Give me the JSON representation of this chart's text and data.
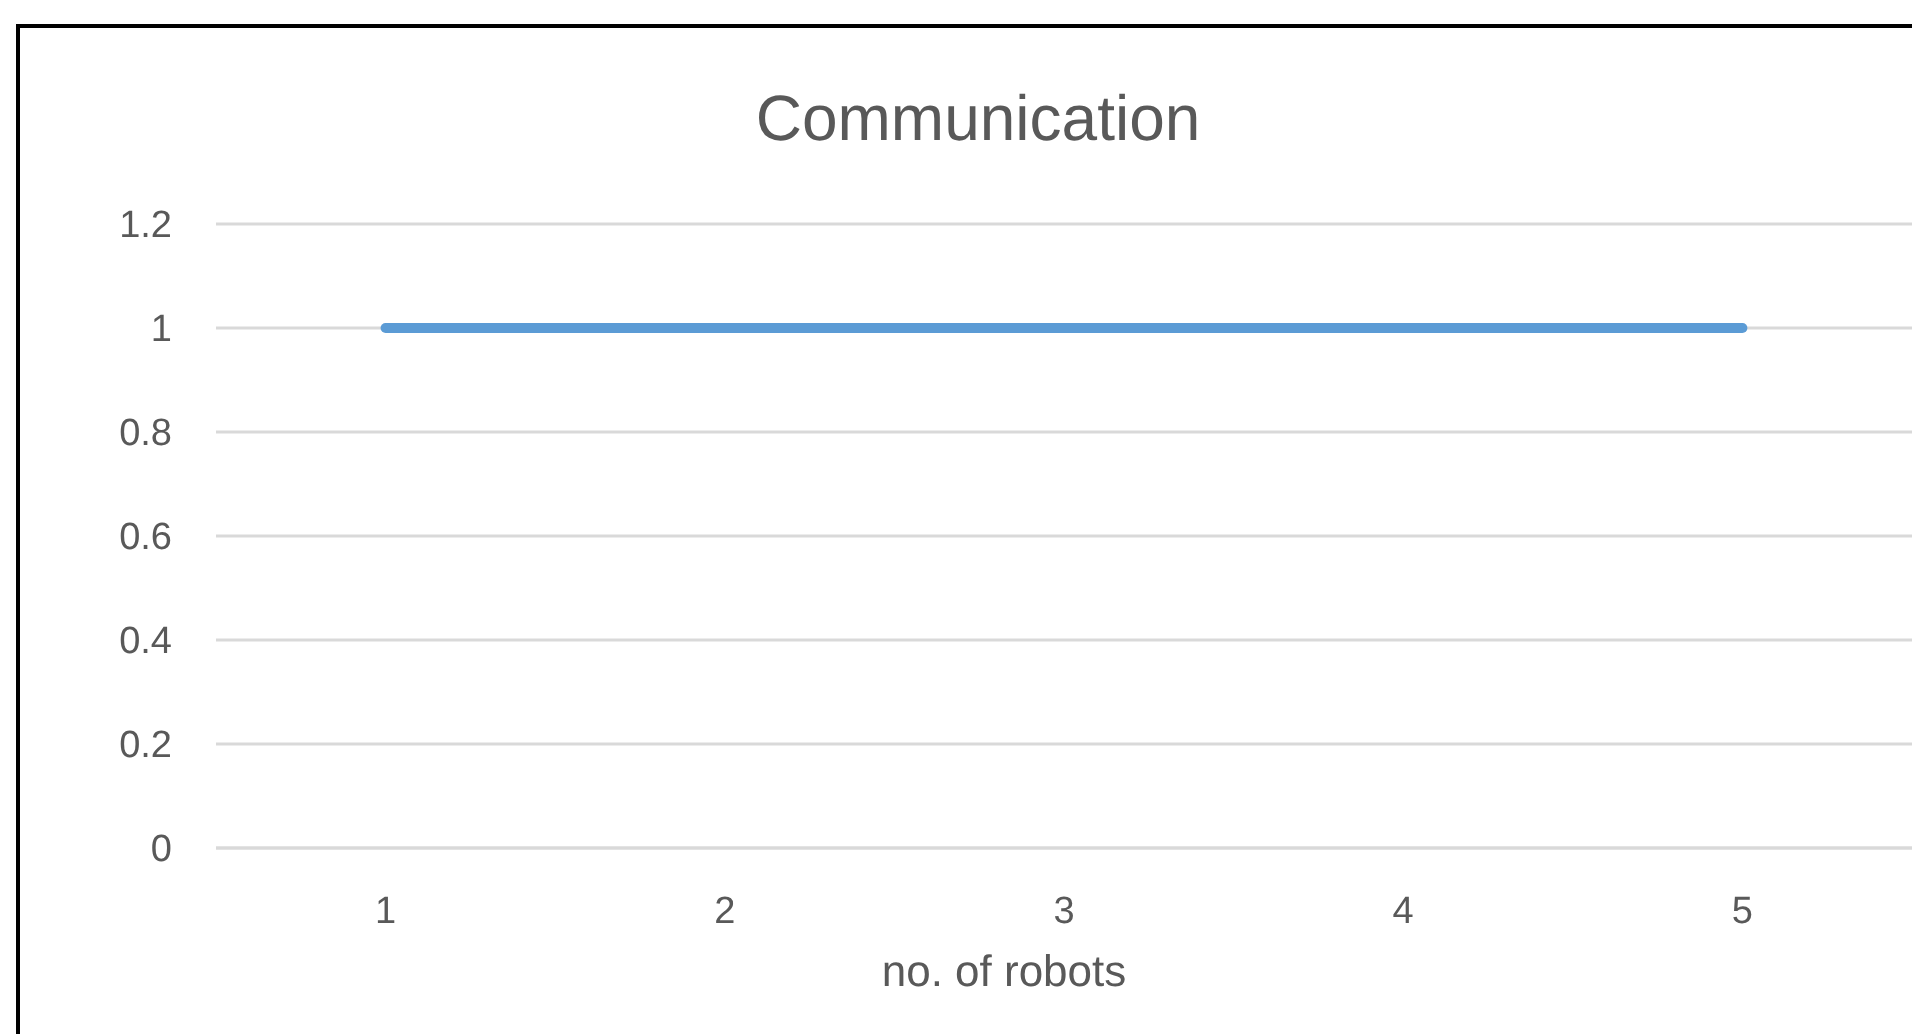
{
  "chart_data": {
    "type": "line",
    "title": "Communication",
    "xlabel": "no. of robots",
    "categories": [
      "1",
      "2",
      "3",
      "4",
      "5"
    ],
    "series": [
      {
        "color": "#5b9bd5",
        "values": [
          1,
          1,
          1,
          1,
          1
        ]
      }
    ],
    "ylim": [
      0,
      1.2
    ],
    "yticks": [
      0,
      0.2,
      0.4,
      0.6,
      0.8,
      1,
      1.2
    ],
    "grid": "y",
    "marker": "none",
    "line_style": "solid"
  }
}
